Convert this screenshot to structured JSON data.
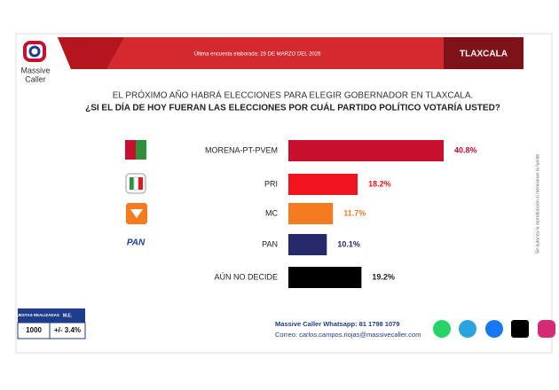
{
  "header": {
    "logo_line1": "Massive",
    "logo_line2": "Caller",
    "survey_date": "Última encuesta elaborada: 28 DE MARZO DEL 2026",
    "region": "TLAXCALA"
  },
  "chart_data": {
    "type": "bar",
    "orientation": "horizontal",
    "title": "EL PRÓXIMO AÑO HABRÁ ELECCIONES PARA ELEGIR GOBERNADOR EN TLAXCALA.",
    "subtitle": "¿SI EL DÍA DE HOY FUERAN LAS ELECCIONES POR CUÁL PARTIDO POLÍTICO VOTARÍA USTED?",
    "categories": [
      "MORENA-PT-PVEM",
      "PRI",
      "MC",
      "PAN",
      "AÚN NO DECIDE"
    ],
    "values": [
      40.8,
      18.2,
      11.7,
      10.1,
      19.2
    ],
    "value_labels": [
      "40.8%",
      "18.2%",
      "11.7%",
      "10.1%",
      "19.2%"
    ],
    "colors": [
      "#c8102e",
      "#f0141e",
      "#f47b20",
      "#262a6a",
      "#000000"
    ],
    "pan_logo": "PAN"
  },
  "footer": {
    "table_header": [
      "ENCUESTAS REALIZADAS",
      "M.E."
    ],
    "table_row": [
      "1000",
      "+/- 3.4%"
    ],
    "whatsapp": "Massive Caller Whatsapp: 81 1798 1079",
    "email": "Correo: carlos.campos.riojas@massivecaller.com",
    "side_note": "Se autoriza la reproducción si mencionan la fuente"
  }
}
